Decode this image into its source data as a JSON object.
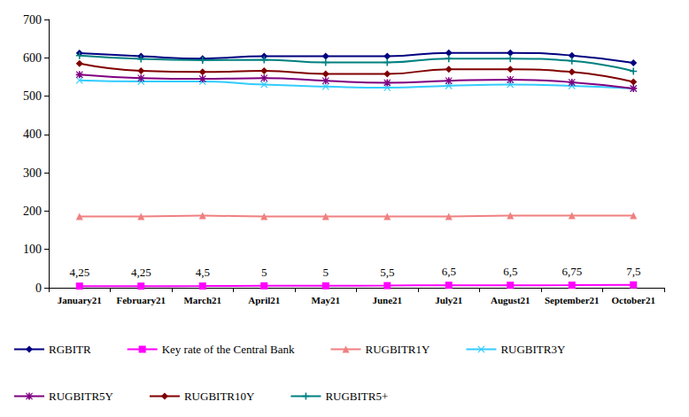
{
  "chart_data": {
    "type": "line",
    "categories": [
      "January21",
      "February21",
      "March21",
      "April21",
      "May21",
      "June21",
      "July21",
      "August21",
      "September21",
      "October21"
    ],
    "ylim": [
      0,
      700
    ],
    "yticks": [
      0,
      100,
      200,
      300,
      400,
      500,
      600,
      700
    ],
    "grid": false,
    "legend": "bottom",
    "series": [
      {
        "name": "RGBITR",
        "color": "#000080",
        "marker": "diamond",
        "line_style": "solid",
        "values": [
          612,
          604,
          598,
          604,
          604,
          604,
          613,
          613,
          606,
          587
        ]
      },
      {
        "name": "Key rate of the Central Bank",
        "color": "#ff00ff",
        "marker": "square",
        "line_style": "solid",
        "values": [
          4.25,
          4.25,
          4.5,
          5,
          5,
          5.5,
          6.5,
          6.5,
          6.75,
          7.5
        ],
        "data_labels": true,
        "value_labels": [
          "4,25",
          "4,25",
          "4,5",
          "5",
          "5",
          "5,5",
          "6,5",
          "6,5",
          "6,75",
          "7,5"
        ]
      },
      {
        "name": "RUGBITR1Y",
        "color": "#f08080",
        "marker": "triangle",
        "line_style": "solid",
        "values": [
          186,
          186,
          188,
          186,
          186,
          186,
          186,
          188,
          188,
          188
        ]
      },
      {
        "name": "RUGBITR3Y",
        "color": "#33ccff",
        "marker": "x",
        "line_style": "solid",
        "values": [
          541,
          538,
          538,
          530,
          525,
          522,
          527,
          530,
          527,
          520
        ]
      },
      {
        "name": "RUGBITR5Y",
        "color": "#800080",
        "marker": "asterisk",
        "line_style": "solid",
        "values": [
          556,
          547,
          545,
          547,
          540,
          535,
          540,
          543,
          536,
          520
        ]
      },
      {
        "name": "RUGBITR10Y",
        "color": "#800000",
        "marker": "diamond",
        "line_style": "solid",
        "values": [
          585,
          566,
          563,
          566,
          558,
          558,
          570,
          570,
          563,
          537
        ]
      },
      {
        "name": "RUGBITR5+",
        "color": "#008080",
        "marker": "plus",
        "line_style": "solid",
        "values": [
          606,
          597,
          594,
          595,
          588,
          588,
          598,
          598,
          592,
          565
        ]
      }
    ]
  }
}
